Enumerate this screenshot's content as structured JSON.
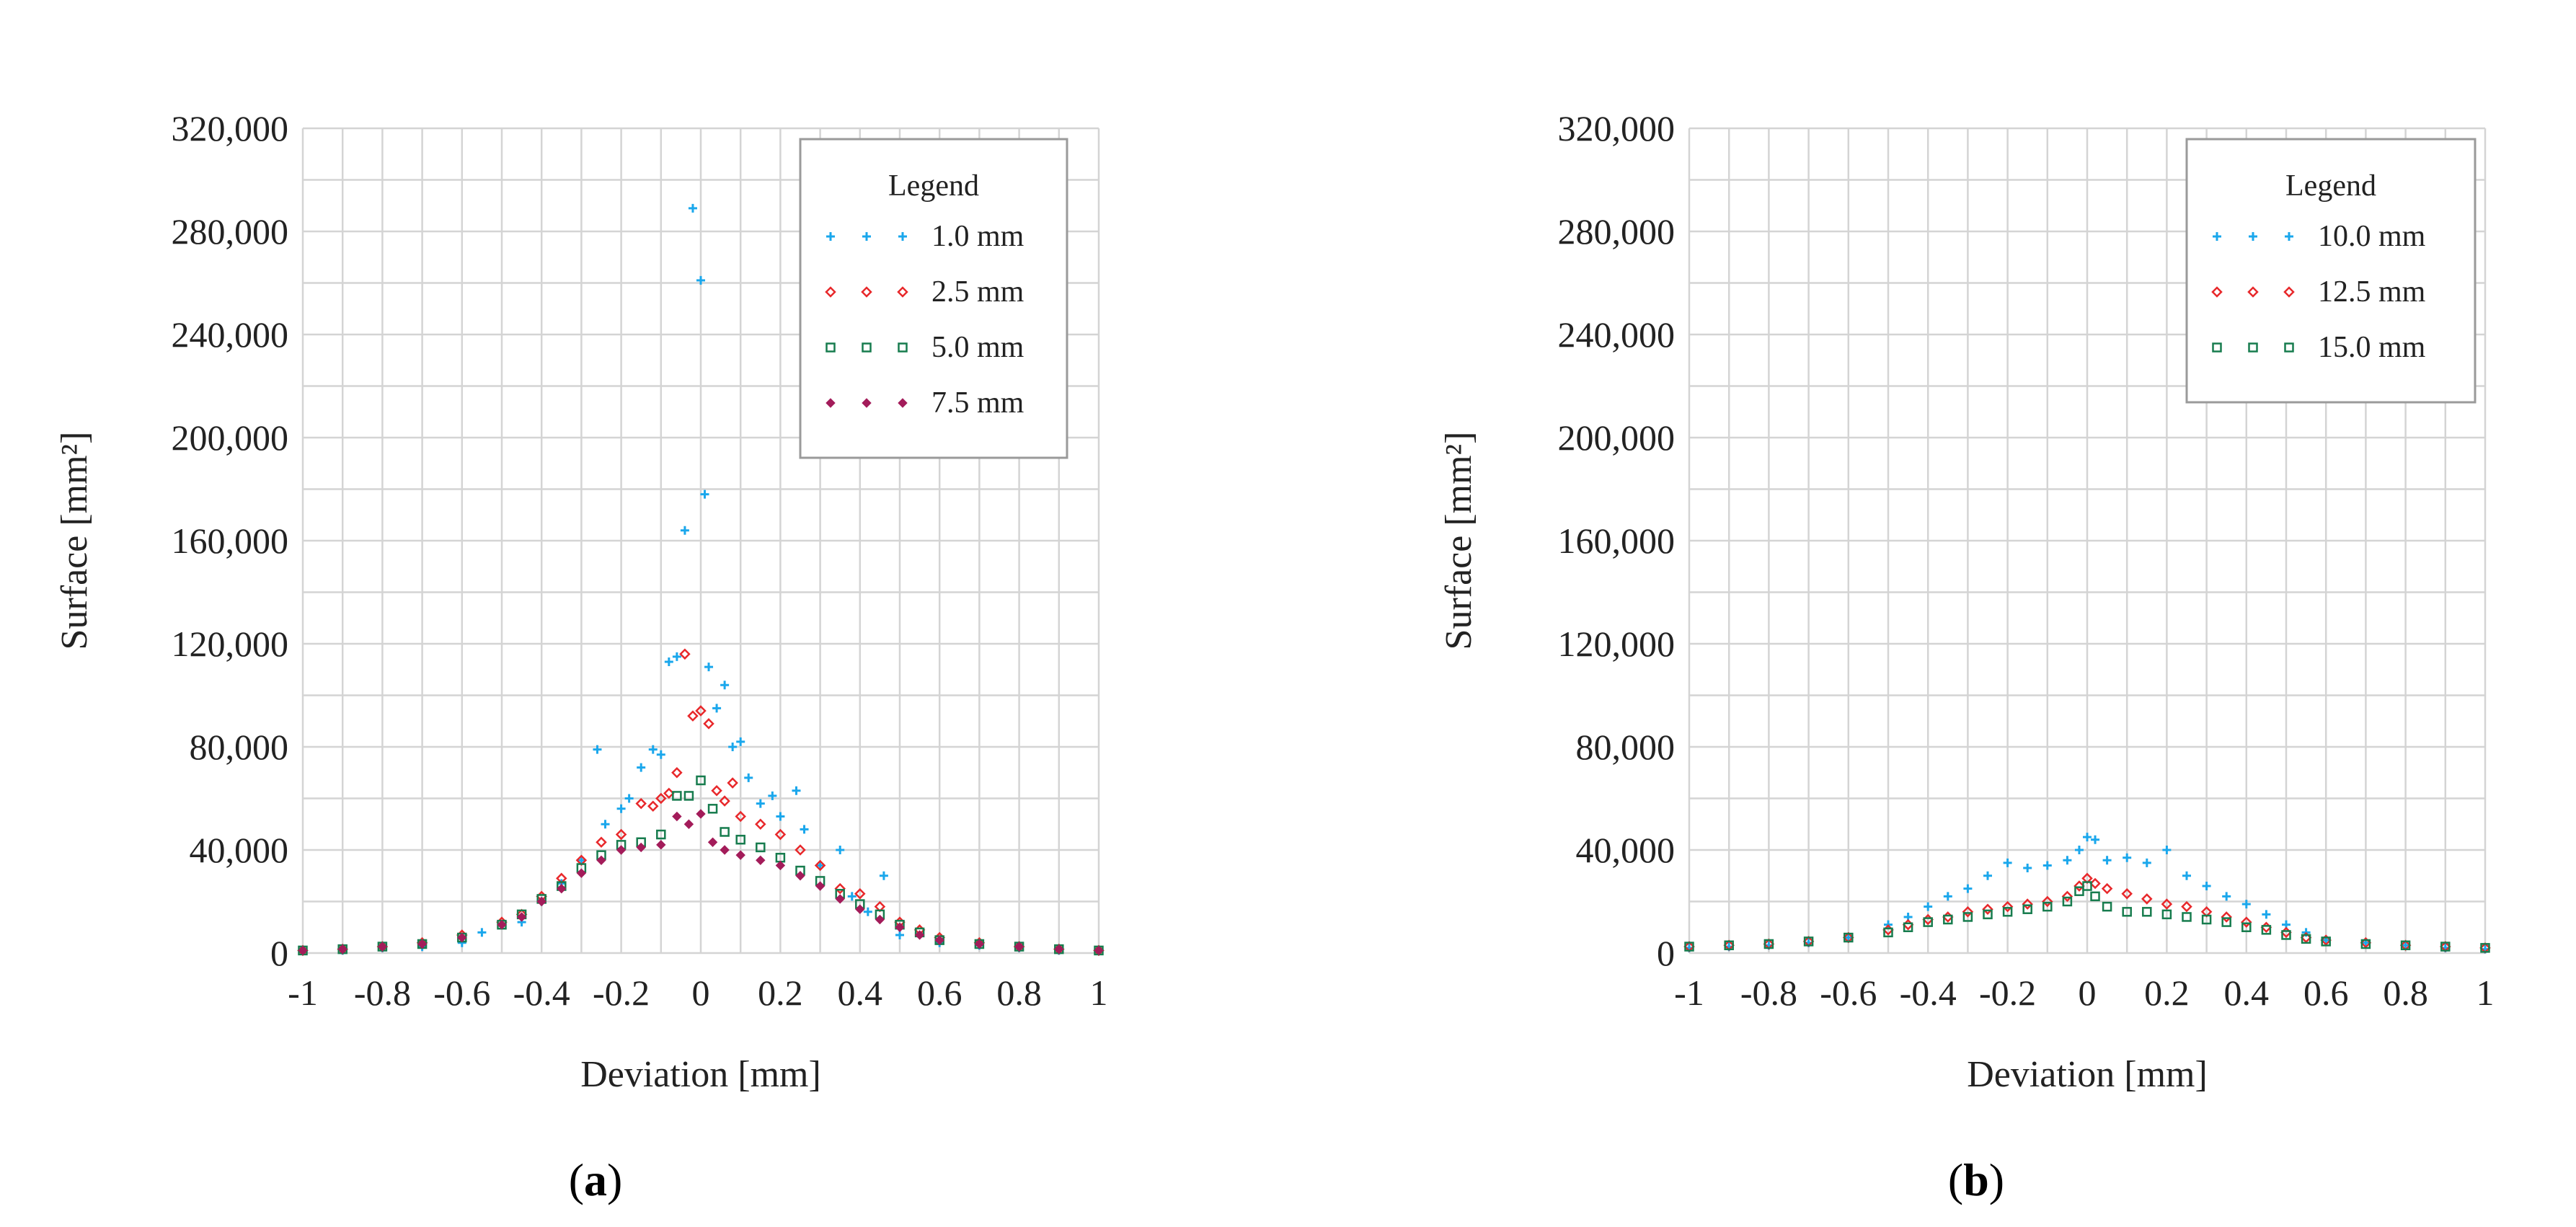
{
  "chart_data": [
    {
      "type": "scatter",
      "caption_letter": "a",
      "xlabel": "Deviation [mm]",
      "ylabel": "Surface [mm²]",
      "xlim": [
        -1,
        1
      ],
      "ylim": [
        0,
        320000
      ],
      "x_ticks": [
        "-1",
        "-0.8",
        "-0.6",
        "-0.4",
        "-0.2",
        "0",
        "0.2",
        "0.4",
        "0.6",
        "0.8",
        "1"
      ],
      "y_ticks": [
        "0",
        "40,000",
        "80,000",
        "120,000",
        "160,000",
        "200,000",
        "240,000",
        "280,000",
        "320,000"
      ],
      "grid": true,
      "legend_title": "Legend",
      "legend_position": "top-right",
      "series": [
        {
          "name": "1.0 mm",
          "marker": "plus",
          "color": "#1aa7ec",
          "x": [
            -0.9,
            -0.8,
            -0.7,
            -0.6,
            -0.55,
            -0.5,
            -0.45,
            -0.4,
            -0.35,
            -0.3,
            -0.26,
            -0.24,
            -0.2,
            -0.18,
            -0.15,
            -0.12,
            -0.1,
            -0.08,
            -0.06,
            -0.04,
            -0.02,
            0,
            0.01,
            0.02,
            0.04,
            0.06,
            0.08,
            0.1,
            0.12,
            0.15,
            0.18,
            0.2,
            0.24,
            0.26,
            0.3,
            0.35,
            0.38,
            0.42,
            0.46,
            0.5,
            0.6,
            0.7,
            0.8,
            0.9,
            1.0
          ],
          "y": [
            1000,
            2000,
            2500,
            4000,
            8000,
            11000,
            12000,
            20000,
            27000,
            36000,
            79000,
            50000,
            56000,
            60000,
            72000,
            79000,
            77000,
            113000,
            115000,
            164000,
            289000,
            261000,
            178000,
            111000,
            95000,
            104000,
            80000,
            82000,
            68000,
            58000,
            61000,
            53000,
            63000,
            48000,
            34000,
            40000,
            22000,
            16000,
            30000,
            7000,
            4000,
            3000,
            2000,
            1000,
            1000
          ]
        },
        {
          "name": "2.5 mm",
          "marker": "diamond",
          "color": "#e8282b",
          "x": [
            -1,
            -0.9,
            -0.8,
            -0.7,
            -0.6,
            -0.5,
            -0.45,
            -0.4,
            -0.35,
            -0.3,
            -0.25,
            -0.2,
            -0.15,
            -0.12,
            -0.1,
            -0.08,
            -0.06,
            -0.04,
            -0.02,
            0,
            0.02,
            0.04,
            0.06,
            0.08,
            0.1,
            0.15,
            0.2,
            0.25,
            0.3,
            0.35,
            0.4,
            0.45,
            0.5,
            0.55,
            0.6,
            0.7,
            0.8,
            0.9,
            1.0
          ],
          "y": [
            1000,
            1500,
            2500,
            4000,
            7000,
            12000,
            15000,
            22000,
            29000,
            36000,
            43000,
            46000,
            58000,
            57000,
            60000,
            62000,
            70000,
            116000,
            92000,
            94000,
            89000,
            63000,
            59000,
            66000,
            53000,
            50000,
            46000,
            40000,
            34000,
            25000,
            23000,
            18000,
            12000,
            9000,
            6000,
            4000,
            2500,
            1500,
            1000
          ]
        },
        {
          "name": "5.0 mm",
          "marker": "square",
          "color": "#177c4e",
          "x": [
            -1,
            -0.9,
            -0.8,
            -0.7,
            -0.6,
            -0.5,
            -0.45,
            -0.4,
            -0.35,
            -0.3,
            -0.25,
            -0.2,
            -0.15,
            -0.1,
            -0.06,
            -0.03,
            0,
            0.03,
            0.06,
            0.1,
            0.15,
            0.2,
            0.25,
            0.3,
            0.35,
            0.4,
            0.45,
            0.5,
            0.55,
            0.6,
            0.7,
            0.8,
            0.9,
            1.0
          ],
          "y": [
            1000,
            1500,
            2500,
            3500,
            6000,
            11000,
            15000,
            21000,
            26000,
            33000,
            38000,
            42000,
            43000,
            46000,
            61000,
            61000,
            67000,
            56000,
            47000,
            44000,
            41000,
            37000,
            32000,
            28000,
            23000,
            19000,
            15000,
            11000,
            8000,
            5000,
            3500,
            2500,
            1500,
            1000
          ]
        },
        {
          "name": "7.5 mm",
          "marker": "dot",
          "color": "#a31c5a",
          "x": [
            -1,
            -0.9,
            -0.8,
            -0.7,
            -0.6,
            -0.5,
            -0.45,
            -0.4,
            -0.35,
            -0.3,
            -0.25,
            -0.2,
            -0.15,
            -0.1,
            -0.06,
            -0.03,
            0,
            0.03,
            0.06,
            0.1,
            0.15,
            0.2,
            0.25,
            0.3,
            0.35,
            0.4,
            0.45,
            0.5,
            0.55,
            0.6,
            0.7,
            0.8,
            0.9,
            1.0
          ],
          "y": [
            1000,
            1500,
            2500,
            3500,
            6000,
            11000,
            14000,
            20000,
            25000,
            31000,
            36000,
            40000,
            41000,
            42000,
            53000,
            50000,
            54000,
            43000,
            40000,
            38000,
            36000,
            34000,
            30000,
            26000,
            21000,
            17000,
            13000,
            10000,
            7000,
            5000,
            3500,
            2500,
            1500,
            1000
          ]
        }
      ]
    },
    {
      "type": "scatter",
      "caption_letter": "b",
      "xlabel": "Deviation [mm]",
      "ylabel": "Surface [mm²]",
      "xlim": [
        -1,
        1
      ],
      "ylim": [
        0,
        320000
      ],
      "x_ticks": [
        "-1",
        "-0.8",
        "-0.6",
        "-0.4",
        "-0.2",
        "0",
        "0.2",
        "0.4",
        "0.6",
        "0.8",
        "1"
      ],
      "y_ticks": [
        "0",
        "40,000",
        "80,000",
        "120,000",
        "160,000",
        "200,000",
        "240,000",
        "280,000",
        "320,000"
      ],
      "grid": true,
      "legend_title": "Legend",
      "legend_position": "top-right",
      "series": [
        {
          "name": "10.0 mm",
          "marker": "plus",
          "color": "#1aa7ec",
          "x": [
            -1,
            -0.9,
            -0.8,
            -0.7,
            -0.6,
            -0.5,
            -0.45,
            -0.4,
            -0.35,
            -0.3,
            -0.25,
            -0.2,
            -0.15,
            -0.1,
            -0.05,
            -0.02,
            0,
            0.02,
            0.05,
            0.1,
            0.15,
            0.2,
            0.25,
            0.3,
            0.35,
            0.4,
            0.45,
            0.5,
            0.55,
            0.6,
            0.7,
            0.8,
            0.9,
            1.0
          ],
          "y": [
            2000,
            2500,
            3000,
            4000,
            6000,
            11000,
            14000,
            18000,
            22000,
            25000,
            30000,
            35000,
            33000,
            34000,
            36000,
            40000,
            45000,
            44000,
            36000,
            37000,
            35000,
            40000,
            30000,
            26000,
            22000,
            19000,
            15000,
            11000,
            8000,
            5000,
            4000,
            3000,
            2000,
            1500
          ]
        },
        {
          "name": "12.5 mm",
          "marker": "diamond",
          "color": "#e8282b",
          "x": [
            -1,
            -0.9,
            -0.8,
            -0.7,
            -0.6,
            -0.5,
            -0.45,
            -0.4,
            -0.35,
            -0.3,
            -0.25,
            -0.2,
            -0.15,
            -0.1,
            -0.05,
            -0.02,
            0,
            0.02,
            0.05,
            0.1,
            0.15,
            0.2,
            0.25,
            0.3,
            0.35,
            0.4,
            0.45,
            0.5,
            0.55,
            0.6,
            0.7,
            0.8,
            0.9,
            1.0
          ],
          "y": [
            2500,
            3000,
            3500,
            4500,
            6000,
            9000,
            11000,
            13000,
            14000,
            16000,
            17000,
            18000,
            19000,
            20000,
            22000,
            26000,
            29000,
            27000,
            25000,
            23000,
            21000,
            19000,
            18000,
            16000,
            14000,
            12000,
            10000,
            8000,
            6000,
            5000,
            4000,
            3000,
            2500,
            2000
          ]
        },
        {
          "name": "15.0 mm",
          "marker": "square",
          "color": "#177c4e",
          "x": [
            -1,
            -0.9,
            -0.8,
            -0.7,
            -0.6,
            -0.5,
            -0.45,
            -0.4,
            -0.35,
            -0.3,
            -0.25,
            -0.2,
            -0.15,
            -0.1,
            -0.05,
            -0.02,
            0,
            0.02,
            0.05,
            0.1,
            0.15,
            0.2,
            0.25,
            0.3,
            0.35,
            0.4,
            0.45,
            0.5,
            0.55,
            0.6,
            0.7,
            0.8,
            0.9,
            1.0
          ],
          "y": [
            2500,
            3000,
            3500,
            4500,
            6000,
            8000,
            10000,
            12000,
            13000,
            14000,
            15000,
            16000,
            17000,
            18000,
            20000,
            24000,
            26000,
            22000,
            18000,
            16000,
            16000,
            15000,
            14000,
            13000,
            12000,
            10000,
            9000,
            7000,
            5500,
            4500,
            3500,
            3000,
            2500,
            2000
          ]
        }
      ]
    }
  ]
}
